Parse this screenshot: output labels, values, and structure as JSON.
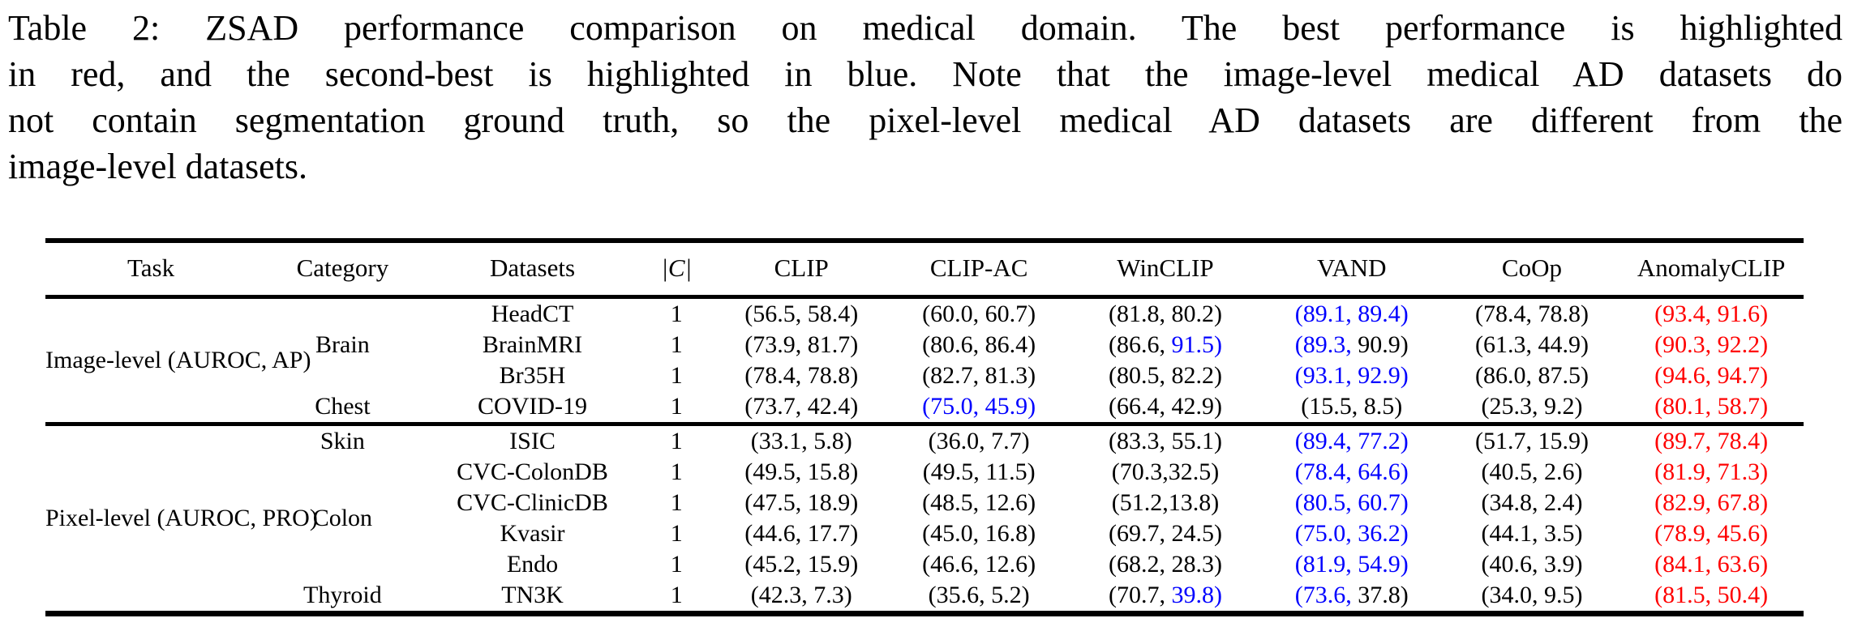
{
  "colors": {
    "best": "#ff0000",
    "second_best": "#0000ff",
    "text": "#000000",
    "background": "#ffffff"
  },
  "caption": {
    "lines": [
      "Table 2: ZSAD performance comparison on medical domain.  The best performance is highlighted",
      "in red, and the second-best is highlighted in blue. Note that the image-level medical AD datasets do",
      "not contain segmentation ground truth, so the pixel-level medical AD datasets are different from the",
      "image-level datasets."
    ]
  },
  "table": {
    "headers": [
      "Task",
      "Category",
      "Datasets",
      "|C|",
      "CLIP",
      "CLIP-AC",
      "WinCLIP",
      "VAND",
      "CoOp",
      "AnomalyCLIP"
    ],
    "legend": {
      "red": "best performance",
      "blue": "second-best performance"
    },
    "groups": [
      {
        "task": "Image-level\n(AUROC, AP)",
        "categories": [
          {
            "name": "Brain",
            "rows": [
              {
                "dataset": "HeadCT",
                "c": "1",
                "cells": [
                  {
                    "l": "(56.5, ",
                    "r": "58.4)",
                    "lc": "k",
                    "rc": "k"
                  },
                  {
                    "l": "(60.0, ",
                    "r": "60.7)",
                    "lc": "k",
                    "rc": "k"
                  },
                  {
                    "l": "(81.8, ",
                    "r": "80.2)",
                    "lc": "k",
                    "rc": "k"
                  },
                  {
                    "l": "(89.1, ",
                    "r": "89.4)",
                    "lc": "b",
                    "rc": "b"
                  },
                  {
                    "l": "(78.4, ",
                    "r": "78.8)",
                    "lc": "k",
                    "rc": "k"
                  },
                  {
                    "l": "(93.4, ",
                    "r": "91.6)",
                    "lc": "r",
                    "rc": "r"
                  }
                ]
              },
              {
                "dataset": "BrainMRI",
                "c": "1",
                "cells": [
                  {
                    "l": "(73.9, ",
                    "r": "81.7)",
                    "lc": "k",
                    "rc": "k"
                  },
                  {
                    "l": "(80.6, ",
                    "r": "86.4)",
                    "lc": "k",
                    "rc": "k"
                  },
                  {
                    "l": "(86.6, ",
                    "r": "91.5)",
                    "lc": "k",
                    "rc": "b"
                  },
                  {
                    "l": "(89.3, ",
                    "r": "90.9)",
                    "lc": "b",
                    "rc": "k"
                  },
                  {
                    "l": "(61.3, ",
                    "r": "44.9)",
                    "lc": "k",
                    "rc": "k"
                  },
                  {
                    "l": "(90.3, ",
                    "r": "92.2)",
                    "lc": "r",
                    "rc": "r"
                  }
                ]
              },
              {
                "dataset": "Br35H",
                "c": "1",
                "cells": [
                  {
                    "l": "(78.4, ",
                    "r": "78.8)",
                    "lc": "k",
                    "rc": "k"
                  },
                  {
                    "l": "(82.7, ",
                    "r": "81.3)",
                    "lc": "k",
                    "rc": "k"
                  },
                  {
                    "l": "(80.5, ",
                    "r": "82.2)",
                    "lc": "k",
                    "rc": "k"
                  },
                  {
                    "l": "(93.1, ",
                    "r": "92.9)",
                    "lc": "b",
                    "rc": "b"
                  },
                  {
                    "l": "(86.0, ",
                    "r": "87.5)",
                    "lc": "k",
                    "rc": "k"
                  },
                  {
                    "l": "(94.6, ",
                    "r": "94.7)",
                    "lc": "r",
                    "rc": "r"
                  }
                ]
              }
            ]
          },
          {
            "name": "Chest",
            "rows": [
              {
                "dataset": "COVID-19",
                "c": "1",
                "cells": [
                  {
                    "l": "(73.7, ",
                    "r": "42.4)",
                    "lc": "k",
                    "rc": "k"
                  },
                  {
                    "l": "(75.0, ",
                    "r": "45.9)",
                    "lc": "b",
                    "rc": "b"
                  },
                  {
                    "l": "(66.4, ",
                    "r": "42.9)",
                    "lc": "k",
                    "rc": "k"
                  },
                  {
                    "l": "(15.5, ",
                    "r": "8.5)",
                    "lc": "k",
                    "rc": "k"
                  },
                  {
                    "l": "(25.3, ",
                    "r": "9.2)",
                    "lc": "k",
                    "rc": "k"
                  },
                  {
                    "l": "(80.1, ",
                    "r": "58.7)",
                    "lc": "r",
                    "rc": "r"
                  }
                ]
              }
            ]
          }
        ]
      },
      {
        "task": "Pixel-level\n(AUROC, PRO)",
        "categories": [
          {
            "name": "Skin",
            "rows": [
              {
                "dataset": "ISIC",
                "c": "1",
                "cells": [
                  {
                    "l": "(33.1, ",
                    "r": "5.8)",
                    "lc": "k",
                    "rc": "k"
                  },
                  {
                    "l": "(36.0, ",
                    "r": "7.7)",
                    "lc": "k",
                    "rc": "k"
                  },
                  {
                    "l": "(83.3, ",
                    "r": "55.1)",
                    "lc": "k",
                    "rc": "k"
                  },
                  {
                    "l": "(89.4, ",
                    "r": "77.2)",
                    "lc": "b",
                    "rc": "b"
                  },
                  {
                    "l": "(51.7, ",
                    "r": "15.9)",
                    "lc": "k",
                    "rc": "k"
                  },
                  {
                    "l": "(89.7, ",
                    "r": "78.4)",
                    "lc": "r",
                    "rc": "r"
                  }
                ]
              }
            ]
          },
          {
            "name": "Colon",
            "rows": [
              {
                "dataset": "CVC-ColonDB",
                "c": "1",
                "cells": [
                  {
                    "l": "(49.5, ",
                    "r": "15.8)",
                    "lc": "k",
                    "rc": "k"
                  },
                  {
                    "l": "(49.5, ",
                    "r": "11.5)",
                    "lc": "k",
                    "rc": "k"
                  },
                  {
                    "l": "(70.3,",
                    "r": "32.5)",
                    "lc": "k",
                    "rc": "k"
                  },
                  {
                    "l": "(78.4, ",
                    "r": "64.6)",
                    "lc": "b",
                    "rc": "b"
                  },
                  {
                    "l": "(40.5, ",
                    "r": "2.6)",
                    "lc": "k",
                    "rc": "k"
                  },
                  {
                    "l": "(81.9, ",
                    "r": "71.3)",
                    "lc": "r",
                    "rc": "r"
                  }
                ]
              },
              {
                "dataset": "CVC-ClinicDB",
                "c": "1",
                "cells": [
                  {
                    "l": "(47.5, ",
                    "r": "18.9)",
                    "lc": "k",
                    "rc": "k"
                  },
                  {
                    "l": "(48.5, ",
                    "r": "12.6)",
                    "lc": "k",
                    "rc": "k"
                  },
                  {
                    "l": "(51.2,",
                    "r": "13.8)",
                    "lc": "k",
                    "rc": "k"
                  },
                  {
                    "l": "(80.5, ",
                    "r": "60.7)",
                    "lc": "b",
                    "rc": "b"
                  },
                  {
                    "l": "(34.8, ",
                    "r": "2.4)",
                    "lc": "k",
                    "rc": "k"
                  },
                  {
                    "l": "(82.9, ",
                    "r": "67.8)",
                    "lc": "r",
                    "rc": "r"
                  }
                ]
              },
              {
                "dataset": "Kvasir",
                "c": "1",
                "cells": [
                  {
                    "l": "(44.6, ",
                    "r": "17.7)",
                    "lc": "k",
                    "rc": "k"
                  },
                  {
                    "l": "(45.0, ",
                    "r": "16.8)",
                    "lc": "k",
                    "rc": "k"
                  },
                  {
                    "l": "(69.7, ",
                    "r": "24.5)",
                    "lc": "k",
                    "rc": "k"
                  },
                  {
                    "l": "(75.0, ",
                    "r": "36.2)",
                    "lc": "b",
                    "rc": "b"
                  },
                  {
                    "l": "(44.1, ",
                    "r": "3.5)",
                    "lc": "k",
                    "rc": "k"
                  },
                  {
                    "l": "(78.9, ",
                    "r": "45.6)",
                    "lc": "r",
                    "rc": "r"
                  }
                ]
              },
              {
                "dataset": "Endo",
                "c": "1",
                "cells": [
                  {
                    "l": "(45.2, ",
                    "r": "15.9)",
                    "lc": "k",
                    "rc": "k"
                  },
                  {
                    "l": "(46.6, ",
                    "r": "12.6)",
                    "lc": "k",
                    "rc": "k"
                  },
                  {
                    "l": "(68.2, ",
                    "r": "28.3)",
                    "lc": "k",
                    "rc": "k"
                  },
                  {
                    "l": "(81.9, ",
                    "r": "54.9)",
                    "lc": "b",
                    "rc": "b"
                  },
                  {
                    "l": "(40.6, ",
                    "r": "3.9)",
                    "lc": "k",
                    "rc": "k"
                  },
                  {
                    "l": "(84.1, ",
                    "r": "63.6)",
                    "lc": "r",
                    "rc": "r"
                  }
                ]
              }
            ]
          },
          {
            "name": "Thyroid",
            "rows": [
              {
                "dataset": "TN3K",
                "c": "1",
                "cells": [
                  {
                    "l": "(42.3, ",
                    "r": "7.3)",
                    "lc": "k",
                    "rc": "k"
                  },
                  {
                    "l": "(35.6, ",
                    "r": "5.2)",
                    "lc": "k",
                    "rc": "k"
                  },
                  {
                    "l": "(70.7, ",
                    "r": "39.8)",
                    "lc": "k",
                    "rc": "b"
                  },
                  {
                    "l": "(73.6, ",
                    "r": "37.8)",
                    "lc": "b",
                    "rc": "k"
                  },
                  {
                    "l": "(34.0, ",
                    "r": "9.5)",
                    "lc": "k",
                    "rc": "k"
                  },
                  {
                    "l": "(81.5, ",
                    "r": "50.4)",
                    "lc": "r",
                    "rc": "r"
                  }
                ]
              }
            ]
          }
        ]
      }
    ]
  }
}
